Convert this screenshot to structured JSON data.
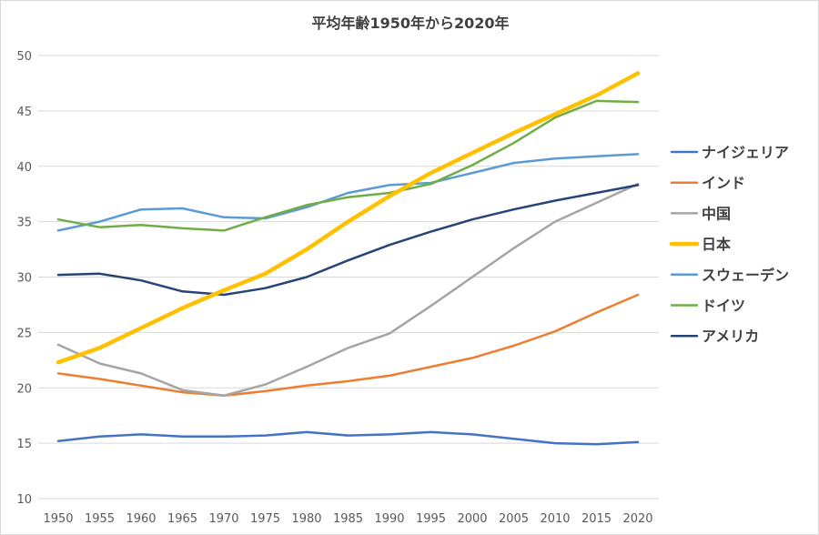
{
  "chart_data": {
    "type": "line",
    "title": "平均年齢1950年から2020年",
    "x": [
      1950,
      1955,
      1960,
      1965,
      1970,
      1975,
      1980,
      1985,
      1990,
      1995,
      2000,
      2005,
      2010,
      2015,
      2020
    ],
    "ylim": [
      10,
      50
    ],
    "yticks": [
      10,
      15,
      20,
      25,
      30,
      35,
      40,
      45,
      50
    ],
    "grid": true,
    "legend": "right",
    "series": [
      {
        "name": "ナイジェリア",
        "color": "#4472c4",
        "values": [
          15.2,
          15.6,
          15.8,
          15.6,
          15.6,
          15.7,
          16.0,
          15.7,
          15.8,
          16.0,
          15.8,
          15.4,
          15.0,
          14.9,
          15.1
        ]
      },
      {
        "name": "インド",
        "color": "#ed7d31",
        "values": [
          21.3,
          20.8,
          20.2,
          19.6,
          19.3,
          19.7,
          20.2,
          20.6,
          21.1,
          21.9,
          22.7,
          23.8,
          25.1,
          26.8,
          28.4
        ]
      },
      {
        "name": "中国",
        "color": "#a5a5a5",
        "values": [
          23.9,
          22.2,
          21.3,
          19.8,
          19.3,
          20.3,
          21.9,
          23.6,
          24.9,
          27.4,
          30.0,
          32.6,
          35.0,
          36.7,
          38.4
        ]
      },
      {
        "name": "日本",
        "color": "#ffc000",
        "values": [
          22.3,
          23.6,
          25.4,
          27.2,
          28.8,
          30.3,
          32.5,
          35.0,
          37.3,
          39.4,
          41.2,
          43.0,
          44.7,
          46.4,
          48.4
        ]
      },
      {
        "name": "スウェーデン",
        "color": "#5b9bd5",
        "values": [
          34.2,
          35.0,
          36.1,
          36.2,
          35.4,
          35.3,
          36.3,
          37.6,
          38.3,
          38.5,
          39.4,
          40.3,
          40.7,
          40.9,
          41.1
        ]
      },
      {
        "name": "ドイツ",
        "color": "#70ad47",
        "values": [
          35.2,
          34.5,
          34.7,
          34.4,
          34.2,
          35.4,
          36.5,
          37.2,
          37.6,
          38.4,
          40.1,
          42.1,
          44.4,
          45.9,
          45.8
        ]
      },
      {
        "name": "アメリカ",
        "color": "#264478",
        "values": [
          30.2,
          30.3,
          29.7,
          28.7,
          28.4,
          29.0,
          30.0,
          31.5,
          32.9,
          34.1,
          35.2,
          36.1,
          36.9,
          37.6,
          38.3
        ]
      }
    ]
  }
}
